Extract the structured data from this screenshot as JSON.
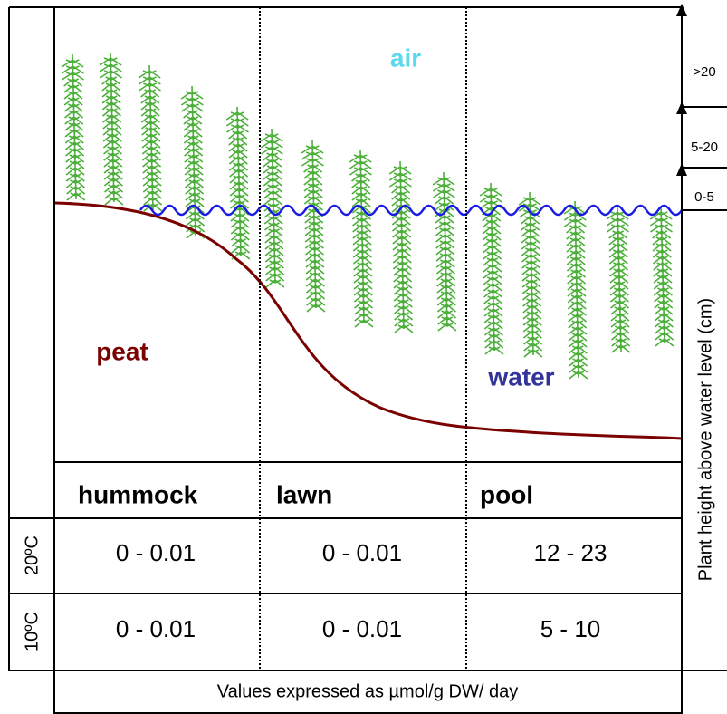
{
  "labels": {
    "air": "air",
    "peat": "peat",
    "water": "water"
  },
  "table": {
    "columns": [
      "hummock",
      "lawn",
      "pool"
    ],
    "rows": [
      {
        "temperature": "20ºC",
        "values": [
          "0 - 0.01",
          "0 - 0.01",
          "12 - 23"
        ]
      },
      {
        "temperature": "10ºC",
        "values": [
          "0 - 0.01",
          "0 - 0.01",
          "5 - 10"
        ]
      }
    ]
  },
  "footnote": "Values expressed as µmol/g DW/ day",
  "height_axis": {
    "title": "Plant height above water level (cm)",
    "ranges": [
      ">20",
      "5-20",
      "0-5"
    ]
  }
}
